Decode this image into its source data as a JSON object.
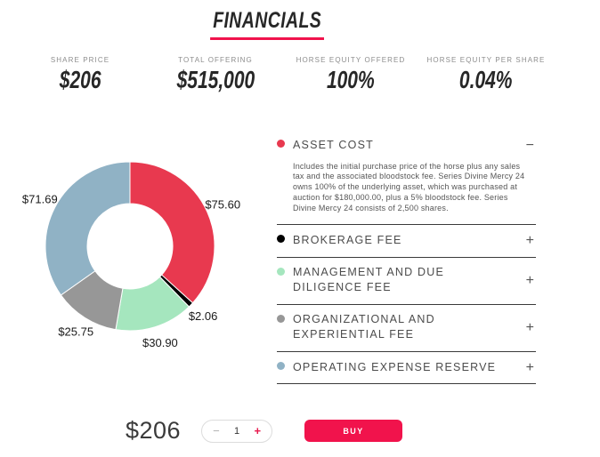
{
  "theme": {
    "accent": "#f1134c",
    "background": "#ffffff",
    "separator_color": "#3a3a3a"
  },
  "page": {
    "title": "FINANCIALS"
  },
  "stats": [
    {
      "label": "SHARE PRICE",
      "value": "$206"
    },
    {
      "label": "TOTAL OFFERING",
      "value": "$515,000"
    },
    {
      "label": "HORSE EQUITY OFFERED",
      "value": "100%"
    },
    {
      "label": "HORSE EQUITY PER SHARE",
      "value": "0.04%"
    }
  ],
  "chart_data": {
    "type": "pie",
    "subtype": "donut",
    "title": "",
    "legend": "none",
    "start_angle_deg": 0,
    "direction": "clockwise",
    "inner_radius_ratio": 0.5,
    "total": 206.0,
    "categories": [
      "Asset Cost",
      "Brokerage Fee",
      "Management and Due Diligence Fee",
      "Organizational and Experiential Fee",
      "Operating Expense Reserve"
    ],
    "values": [
      75.6,
      2.06,
      30.9,
      25.75,
      71.69
    ],
    "labels": [
      "$75.60",
      "$2.06",
      "$30.90",
      "$25.75",
      "$71.69"
    ],
    "colors": [
      "#e8394f",
      "#000000",
      "#a5e6be",
      "#979797",
      "#90b2c5"
    ]
  },
  "accordion": {
    "items": [
      {
        "title": "ASSET COST",
        "dot_color": "#e8394f",
        "state": "expanded",
        "toggle": "−",
        "body": "Includes the initial purchase price of the horse plus any sales tax and the associated bloodstock fee. Series Divine Mercy 24 owns 100% of the underlying asset, which was purchased at auction for $180,000.00, plus a 5% bloodstock fee. Series Divine Mercy 24 consists of 2,500 shares."
      },
      {
        "title": "BROKERAGE FEE",
        "dot_color": "#000000",
        "state": "collapsed",
        "toggle": "+"
      },
      {
        "title": "MANAGEMENT AND DUE DILIGENCE FEE",
        "dot_color": "#a5e6be",
        "state": "collapsed",
        "toggle": "+"
      },
      {
        "title": "ORGANIZATIONAL AND EXPERIENTIAL FEE",
        "dot_color": "#979797",
        "state": "collapsed",
        "toggle": "+"
      },
      {
        "title": "OPERATING EXPENSE RESERVE",
        "dot_color": "#90b2c5",
        "state": "collapsed",
        "toggle": "+"
      }
    ]
  },
  "purchase": {
    "price": "$206",
    "quantity": "1",
    "decrease_label": "−",
    "increase_label": "+",
    "buy_label": "BUY"
  }
}
